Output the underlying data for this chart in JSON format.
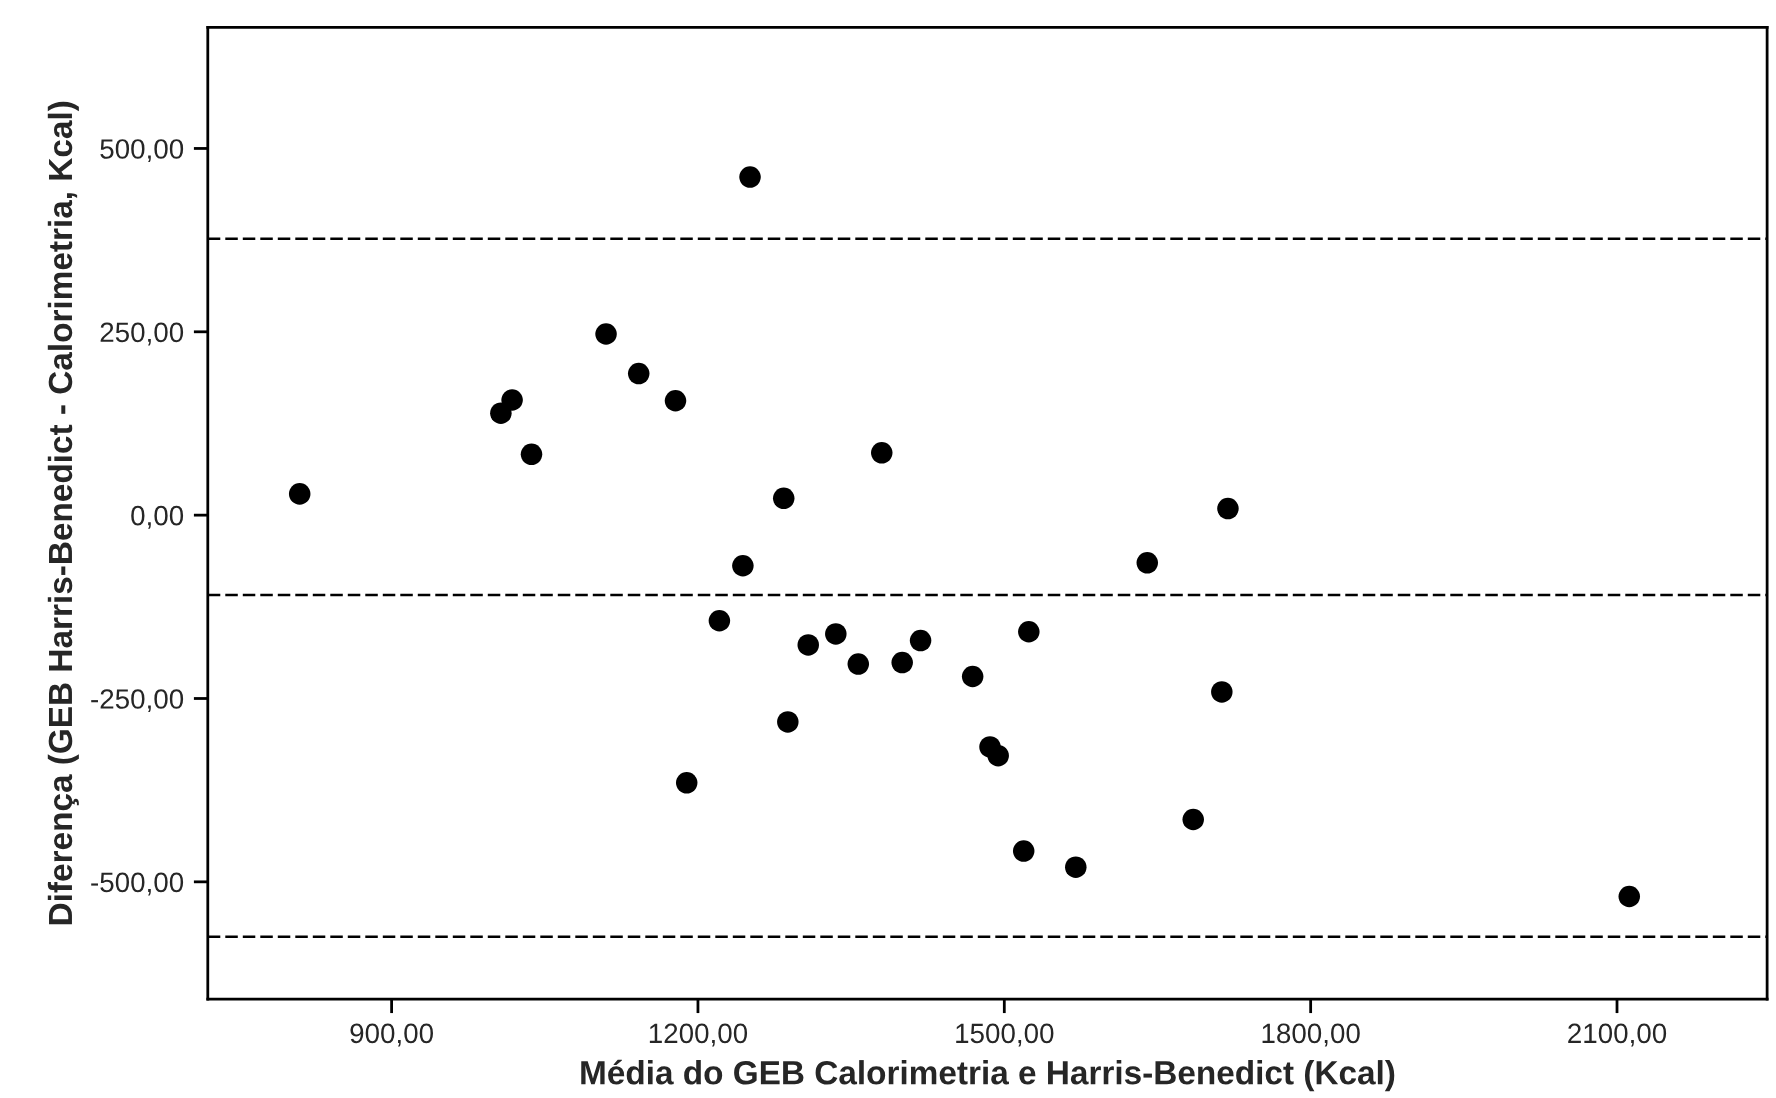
{
  "chart_data": {
    "type": "scatter",
    "xlabel": "Média do GEB Calorimetria e Harris-Benedict (Kcal)",
    "ylabel": "Diferença (GEB Harris-Benedict - Calorimetria, Kcal)",
    "x": [
      810,
      1018,
      1007,
      1037,
      1110,
      1142,
      1178,
      1251,
      1284,
      1244,
      1221,
      1288,
      1189,
      1380,
      1308,
      1335,
      1357,
      1400,
      1418,
      1469,
      1524,
      1486,
      1494,
      1519,
      1570,
      1640,
      1719,
      1713,
      1685,
      2112
    ],
    "series": [
      {
        "color": "#000000",
        "values": [
          29,
          157,
          139,
          83,
          247,
          193,
          156,
          461,
          23,
          -69,
          -144,
          -282,
          -365,
          85,
          -177,
          -162,
          -203,
          -201,
          -171,
          -220,
          -159,
          -316,
          -328,
          -458,
          -480,
          -65,
          9,
          -241,
          -415,
          -520
        ]
      }
    ],
    "marker": "circle",
    "xlim": [
      720,
      2247
    ],
    "ylim": [
      -660,
      665
    ],
    "xticks": [
      {
        "value": 900,
        "label": "900,00"
      },
      {
        "value": 1200,
        "label": "1200,00"
      },
      {
        "value": 1500,
        "label": "1500,00"
      },
      {
        "value": 1800,
        "label": "1800,00"
      },
      {
        "value": 2100,
        "label": "2100,00"
      }
    ],
    "yticks": [
      {
        "value": -500,
        "label": "-500,00"
      },
      {
        "value": -250,
        "label": "-250,00"
      },
      {
        "value": 0,
        "label": "0,00"
      },
      {
        "value": 250,
        "label": "250,00"
      },
      {
        "value": 500,
        "label": "500,00"
      }
    ],
    "ref_lines": [
      {
        "axis": "y",
        "value": 377,
        "line_style": "dashed",
        "color": "#000000"
      },
      {
        "axis": "y",
        "value": -109,
        "line_style": "dashed",
        "color": "#000000"
      },
      {
        "axis": "y",
        "value": -575,
        "line_style": "dashed",
        "color": "#000000"
      }
    ],
    "grid": false,
    "legend": false
  }
}
